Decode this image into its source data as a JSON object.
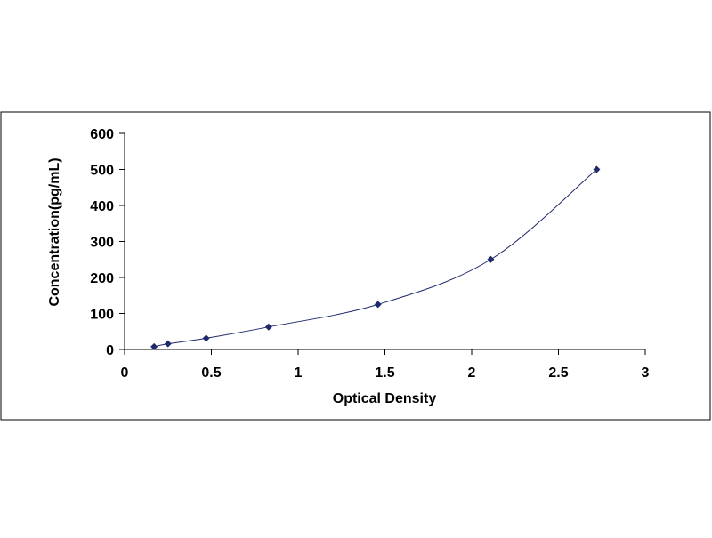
{
  "chart_data": {
    "type": "scatter",
    "title": "",
    "xlabel": "Optical Density",
    "ylabel": "Concentration(pg/mL)",
    "xlim": [
      0,
      3
    ],
    "ylim": [
      0,
      600
    ],
    "x_ticks": [
      0,
      0.5,
      1,
      1.5,
      2,
      2.5,
      3
    ],
    "y_ticks": [
      0,
      100,
      200,
      300,
      400,
      500,
      600
    ],
    "x_tick_labels": [
      "0",
      "0.5",
      "1",
      "1.5",
      "2",
      "2.5",
      "3"
    ],
    "y_tick_labels": [
      "0",
      "100",
      "200",
      "300",
      "400",
      "500",
      "600"
    ],
    "grid": false,
    "legend": false,
    "smooth_line": true,
    "series": [
      {
        "x": [
          0.17,
          0.25,
          0.47,
          0.83,
          1.46,
          2.11,
          2.72
        ],
        "y": [
          7.8,
          15.6,
          31.2,
          62.5,
          125,
          250,
          500
        ],
        "marker": "diamond",
        "color": "#1f2a6b"
      }
    ]
  }
}
